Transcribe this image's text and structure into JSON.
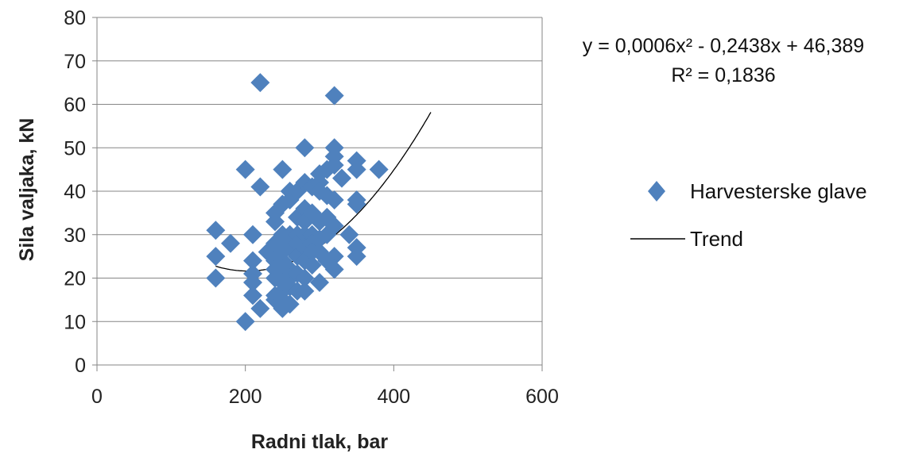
{
  "chart_data": {
    "type": "scatter",
    "xlabel": "Radni tlak, bar",
    "ylabel": "Sila valjaka, kN",
    "xlim": [
      0,
      600
    ],
    "ylim": [
      0,
      80
    ],
    "xticks": [
      "0",
      "200",
      "400",
      "600"
    ],
    "yticks": [
      "0",
      "10",
      "20",
      "30",
      "40",
      "50",
      "60",
      "70",
      "80"
    ],
    "grid": "horizontal",
    "legend_position": "right",
    "equation": "y = 0,0006x² - 0,2438x + 46,389",
    "r_squared": "R² = 0,1836",
    "trend_coefficients": [
      0.0006,
      -0.2438,
      46.389
    ],
    "trend_range": [
      160,
      450
    ],
    "series": [
      {
        "name": "Harvesterske glave",
        "marker": "diamond",
        "color": "#4F81BD",
        "points": [
          [
            160,
            31
          ],
          [
            160,
            25
          ],
          [
            160,
            20
          ],
          [
            180,
            28
          ],
          [
            200,
            45
          ],
          [
            200,
            10
          ],
          [
            210,
            30
          ],
          [
            210,
            24
          ],
          [
            210,
            21
          ],
          [
            210,
            19
          ],
          [
            210,
            16
          ],
          [
            220,
            65
          ],
          [
            220,
            41
          ],
          [
            220,
            13
          ],
          [
            230,
            26
          ],
          [
            240,
            35
          ],
          [
            240,
            33
          ],
          [
            240,
            28
          ],
          [
            240,
            24
          ],
          [
            240,
            22
          ],
          [
            240,
            20
          ],
          [
            240,
            16
          ],
          [
            240,
            15
          ],
          [
            250,
            45
          ],
          [
            250,
            37
          ],
          [
            250,
            30
          ],
          [
            250,
            28
          ],
          [
            250,
            26
          ],
          [
            250,
            24
          ],
          [
            250,
            22
          ],
          [
            250,
            19
          ],
          [
            250,
            17
          ],
          [
            250,
            15
          ],
          [
            250,
            13
          ],
          [
            260,
            40
          ],
          [
            260,
            38
          ],
          [
            260,
            30
          ],
          [
            260,
            27
          ],
          [
            260,
            22
          ],
          [
            260,
            20
          ],
          [
            260,
            18
          ],
          [
            260,
            14
          ],
          [
            270,
            40
          ],
          [
            270,
            34
          ],
          [
            270,
            30
          ],
          [
            270,
            28
          ],
          [
            270,
            25
          ],
          [
            270,
            21
          ],
          [
            270,
            17
          ],
          [
            280,
            50
          ],
          [
            280,
            42
          ],
          [
            280,
            36
          ],
          [
            280,
            33
          ],
          [
            280,
            30
          ],
          [
            280,
            27
          ],
          [
            280,
            24
          ],
          [
            280,
            20
          ],
          [
            280,
            17
          ],
          [
            290,
            41
          ],
          [
            290,
            35
          ],
          [
            290,
            30
          ],
          [
            290,
            28
          ],
          [
            290,
            26
          ],
          [
            290,
            23
          ],
          [
            300,
            44
          ],
          [
            300,
            42
          ],
          [
            300,
            40
          ],
          [
            300,
            33
          ],
          [
            300,
            29
          ],
          [
            300,
            26
          ],
          [
            300,
            19
          ],
          [
            310,
            45
          ],
          [
            310,
            39
          ],
          [
            310,
            34
          ],
          [
            310,
            30
          ],
          [
            310,
            24
          ],
          [
            320,
            62
          ],
          [
            320,
            50
          ],
          [
            320,
            48
          ],
          [
            320,
            46
          ],
          [
            320,
            38
          ],
          [
            320,
            32
          ],
          [
            320,
            25
          ],
          [
            320,
            22
          ],
          [
            330,
            43
          ],
          [
            340,
            30
          ],
          [
            350,
            47
          ],
          [
            350,
            45
          ],
          [
            350,
            38
          ],
          [
            350,
            37
          ],
          [
            350,
            27
          ],
          [
            350,
            25
          ],
          [
            380,
            45
          ]
        ]
      },
      {
        "name": "Trend",
        "type": "line",
        "color": "#000000"
      }
    ]
  }
}
